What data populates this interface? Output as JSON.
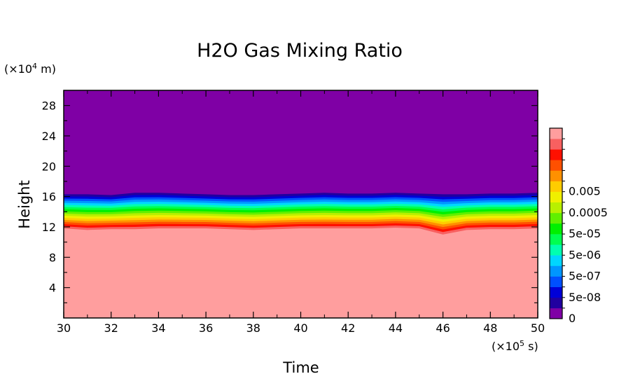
{
  "chart_data": {
    "type": "heatmap",
    "subtype": "filled-contour",
    "title": "H2O Gas Mixing Ratio",
    "xlabel": "Time",
    "ylabel": "Height",
    "x_unit_prefix": "(×10",
    "x_unit_exp": "5",
    "x_unit_suffix": " s)",
    "y_unit_prefix": "(×10",
    "y_unit_exp": "4",
    "y_unit_suffix": " m)",
    "xlim": [
      30,
      50
    ],
    "ylim": [
      0,
      30
    ],
    "x_ticks": [
      "30",
      "32",
      "34",
      "36",
      "38",
      "40",
      "42",
      "44",
      "46",
      "48",
      "50"
    ],
    "x_tick_values": [
      30,
      32,
      34,
      36,
      38,
      40,
      42,
      44,
      46,
      48,
      50
    ],
    "y_ticks": [
      "4",
      "8",
      "12",
      "16",
      "20",
      "24",
      "28"
    ],
    "y_tick_values": [
      4,
      8,
      12,
      16,
      20,
      24,
      28
    ],
    "colorbar": {
      "colors": [
        "#7f00a5",
        "#2000a0",
        "#0000d8",
        "#0050ff",
        "#0096ff",
        "#00d6ff",
        "#00ffb0",
        "#00ff50",
        "#00f000",
        "#60f000",
        "#b8f000",
        "#f0f000",
        "#ffcc00",
        "#ff9000",
        "#ff5000",
        "#ff1000",
        "#f86060",
        "#ff9e9e"
      ],
      "labels": [
        "0",
        "5e-08",
        "5e-07",
        "5e-06",
        "5e-05",
        "0.0005",
        "0.005"
      ],
      "label_levels": [
        0,
        2,
        4,
        6,
        8,
        10,
        12
      ]
    },
    "tropopause_top_height": [
      16.3,
      16.3,
      16.2,
      16.5,
      16.5,
      16.4,
      16.3,
      16.2,
      16.2,
      16.3,
      16.4,
      16.5,
      16.4,
      16.4,
      16.5,
      16.4,
      16.3,
      16.3,
      16.4,
      16.4,
      16.5
    ],
    "moist_layer_top_height": [
      11.8,
      11.6,
      11.7,
      11.7,
      11.8,
      11.8,
      11.8,
      11.7,
      11.6,
      11.7,
      11.8,
      11.8,
      11.8,
      11.8,
      11.9,
      11.8,
      11.0,
      11.6,
      11.7,
      11.7,
      11.8
    ],
    "x_samples": [
      30,
      31,
      32,
      33,
      34,
      35,
      36,
      37,
      38,
      39,
      40,
      41,
      42,
      43,
      44,
      45,
      46,
      47,
      48,
      49,
      50
    ]
  }
}
